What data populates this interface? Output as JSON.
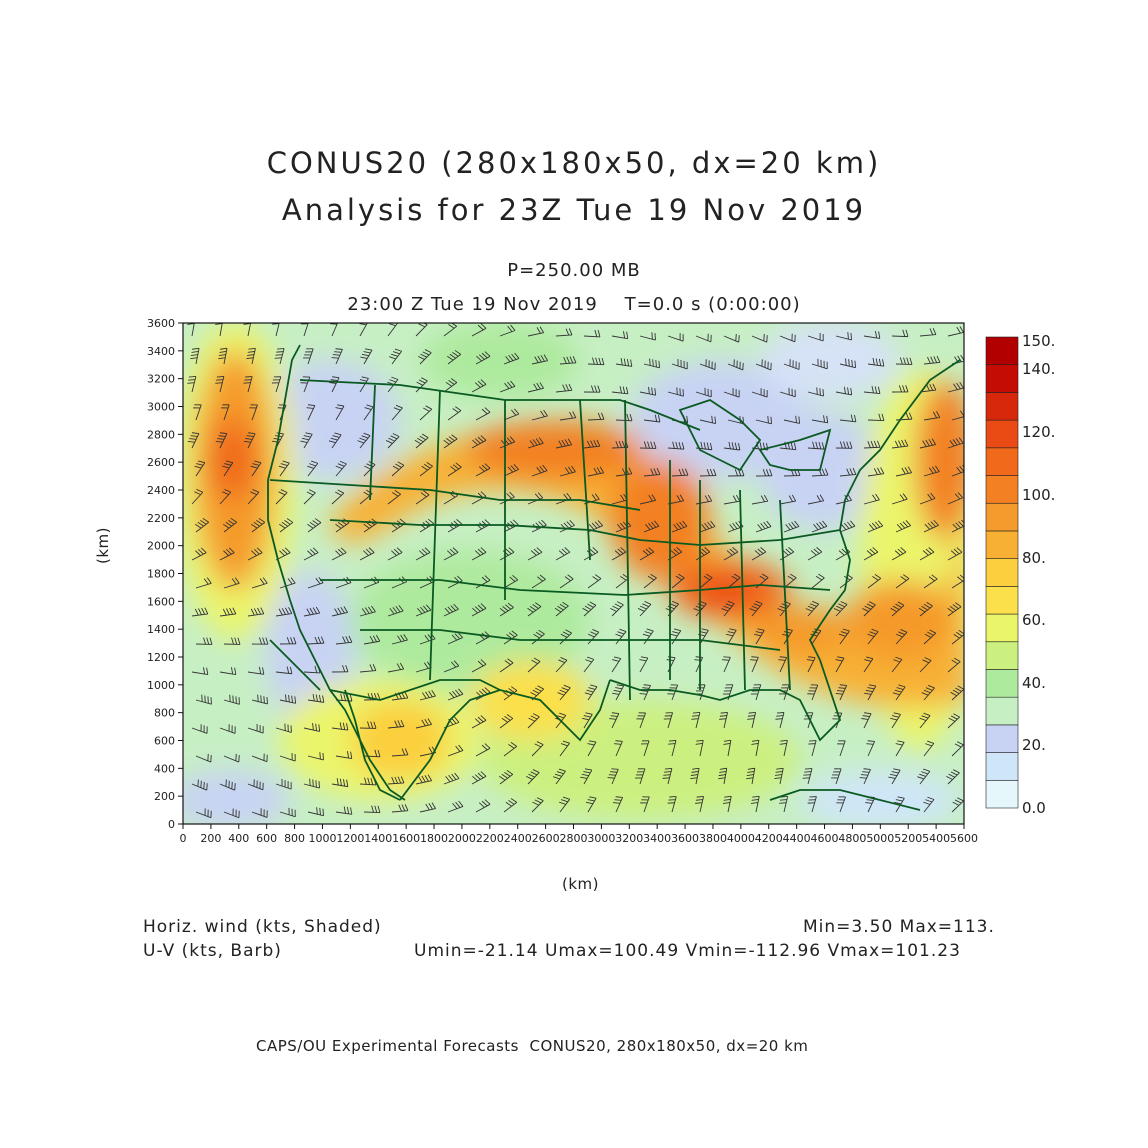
{
  "title_line1": "CONUS20 (280x180x50, dx=20 km)",
  "title_line2": "Analysis for 23Z Tue 19 Nov 2019",
  "level": "P=250.00 MB",
  "time": "23:00 Z Tue 19 Nov 2019    T=0.0 s (0:00:00)",
  "x_axis_label": "(km)",
  "y_axis_label": "(km)",
  "x_ticks": [
    "0",
    "200",
    "400",
    "600",
    "800",
    "1000",
    "1200",
    "1400",
    "1600",
    "1800",
    "2000",
    "2200",
    "2400",
    "2600",
    "2800",
    "3000",
    "3200",
    "3400",
    "3600",
    "3800",
    "4000",
    "4200",
    "4400",
    "4600",
    "4800",
    "5000",
    "5200",
    "5400",
    "5600"
  ],
  "y_ticks": [
    "0",
    "200",
    "400",
    "600",
    "800",
    "1000",
    "1200",
    "1400",
    "1600",
    "1800",
    "2000",
    "2200",
    "2400",
    "2600",
    "2800",
    "3000",
    "3200",
    "3400",
    "3600"
  ],
  "colorbar": {
    "labels": [
      "0.0",
      "20.",
      "40.",
      "60.",
      "80.",
      "100.",
      "120.",
      "140.",
      "150."
    ],
    "colors": [
      "#e6f7fb",
      "#cfe6f8",
      "#c8d3f4",
      "#c7efc4",
      "#aeea9e",
      "#ccf07f",
      "#ebf56a",
      "#fbe04c",
      "#fbcf3e",
      "#f8b034",
      "#f59a2c",
      "#f38022",
      "#f16a1c",
      "#ea4a14",
      "#d8280c",
      "#c40c04",
      "#b20000"
    ]
  },
  "stats": {
    "field1_label": "Horiz. wind (kts, Shaded)",
    "field1_minmax": "Min=3.50 Max=113.",
    "field2_label": "U-V (kts, Barb)",
    "field2_minmax": "Umin=-21.14 Umax=100.49 Vmin=-112.96 Vmax=101.23"
  },
  "footer": "CAPS/OU Experimental Forecasts  CONUS20, 280x180x50, dx=20 km"
}
